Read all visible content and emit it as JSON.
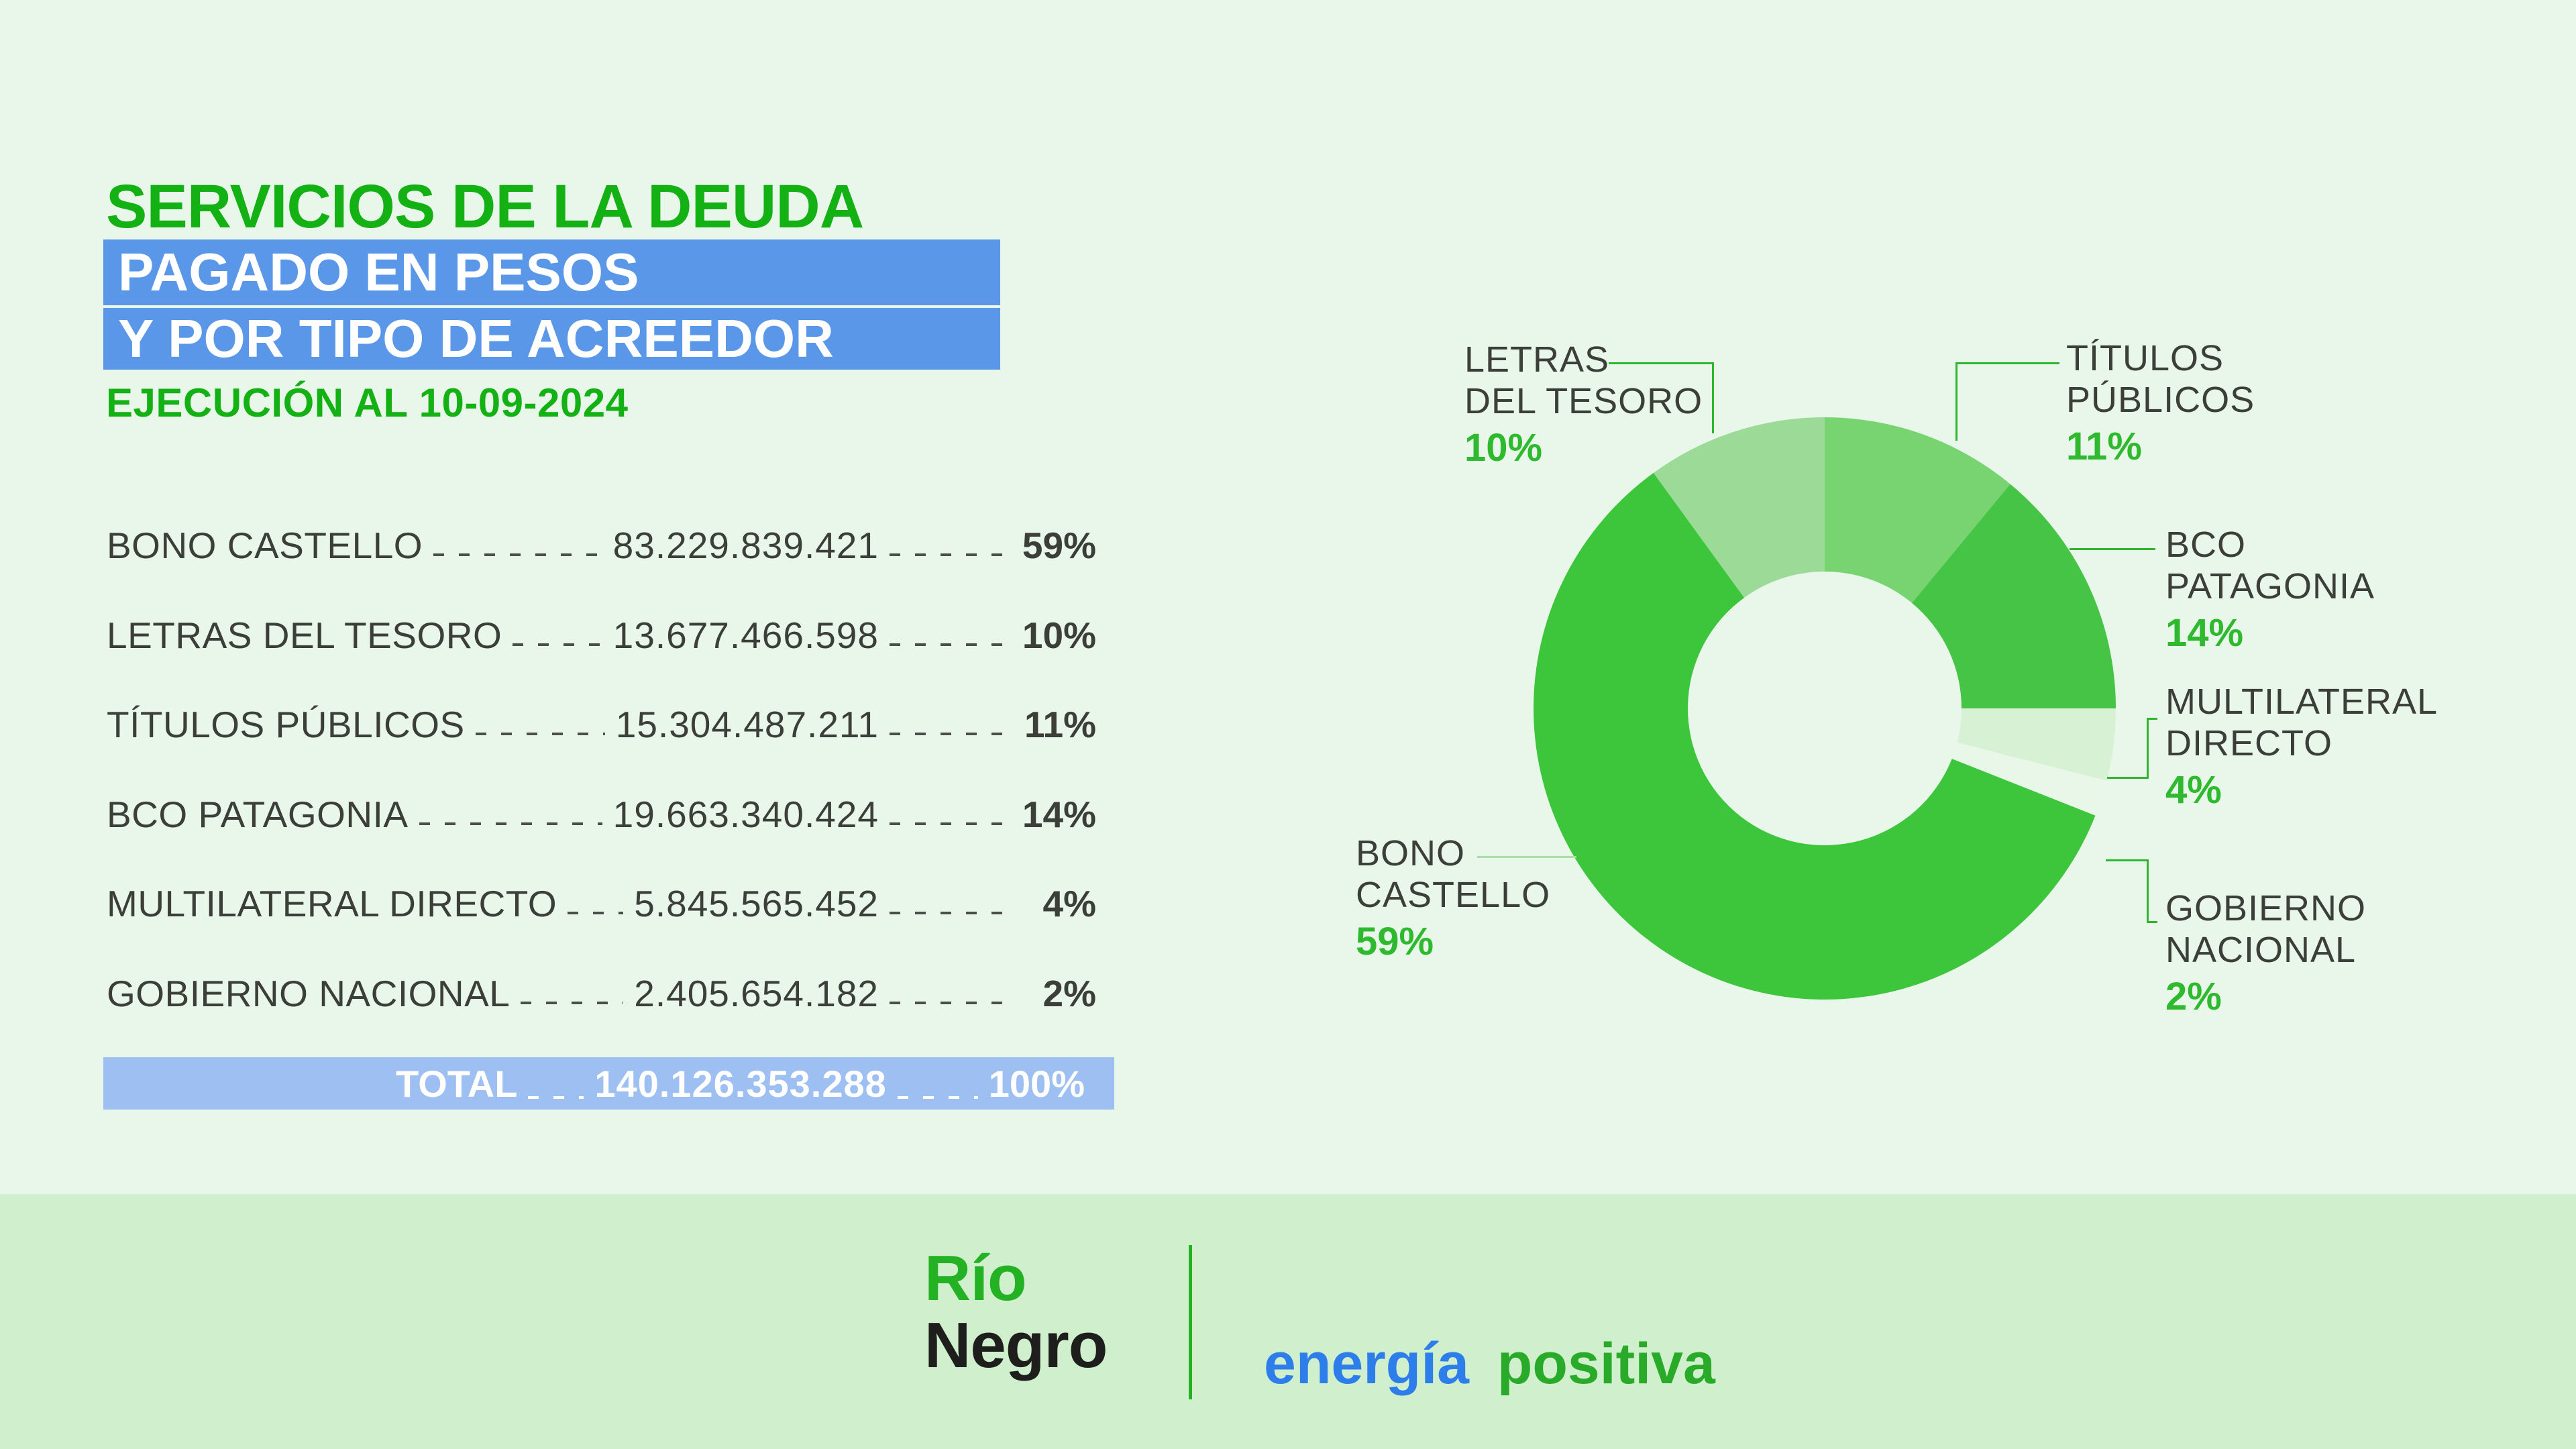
{
  "title": {
    "line1": "SERVICIOS DE LA DEUDA",
    "highlight1": "PAGADO EN PESOS",
    "highlight2": "Y POR TIPO DE ACREEDOR",
    "subtitle": "EJECUCIÓN AL 10-09-2024"
  },
  "table": {
    "rows": [
      {
        "label": "BONO CASTELLO",
        "amount": "83.229.839.421",
        "pct": "59%"
      },
      {
        "label": "LETRAS DEL TESORO",
        "amount": "13.677.466.598",
        "pct": "10%"
      },
      {
        "label": "TÍTULOS PÚBLICOS",
        "amount": "15.304.487.211",
        "pct": "11%"
      },
      {
        "label": "BCO PATAGONIA",
        "amount": "19.663.340.424",
        "pct": "14%"
      },
      {
        "label": "MULTILATERAL DIRECTO",
        "amount": "5.845.565.452",
        "pct": "4%"
      },
      {
        "label": "GOBIERNO NACIONAL",
        "amount": "2.405.654.182",
        "pct": "2%"
      }
    ],
    "total": {
      "label": "TOTAL",
      "amount": "140.126.353.288",
      "pct": "100%"
    }
  },
  "chart_data": {
    "type": "pie",
    "subtype": "donut",
    "title": "SERVICIOS DE LA DEUDA PAGADO EN PESOS Y POR TIPO DE ACREEDOR",
    "subtitle": "EJECUCIÓN AL 10-09-2024",
    "total_label": "TOTAL",
    "total_amount": "140.126.353.288",
    "inner_radius_ratio": 0.47,
    "start_angle": "top",
    "direction": "clockwise",
    "legend_position": "callouts",
    "slices": [
      {
        "label": "TÍTULOS PÚBLICOS",
        "value": 15304487211,
        "pct": 11,
        "color": "#77d471"
      },
      {
        "label": "BCO PATAGONIA",
        "value": 19663340424,
        "pct": 14,
        "color": "#46c446"
      },
      {
        "label": "MULTILATERAL DIRECTO",
        "value": 5845565452,
        "pct": 4,
        "color": "#d6f1d3"
      },
      {
        "label": "GOBIERNO NACIONAL",
        "value": 2405654182,
        "pct": 2,
        "color": "#e9f7e9"
      },
      {
        "label": "BONO CASTELLO",
        "value": 83229839421,
        "pct": 59,
        "color": "#3dc63b"
      },
      {
        "label": "LETRAS DEL TESORO",
        "value": 13677466598,
        "pct": 10,
        "color": "#9cdb97"
      }
    ]
  },
  "callouts": [
    {
      "line1": "LETRAS",
      "line2": "DEL TESORO",
      "pct": "10%"
    },
    {
      "line1": "TÍTULOS",
      "line2": "PÚBLICOS",
      "pct": "11%"
    },
    {
      "line1": "BCO",
      "line2": "PATAGONIA",
      "pct": "14%"
    },
    {
      "line1": "MULTILATERAL",
      "line2": "DIRECTO",
      "pct": "4%"
    },
    {
      "line1": "GOBIERNO",
      "line2": "NACIONAL",
      "pct": "2%"
    },
    {
      "line1": "BONO",
      "line2": "CASTELLO",
      "pct": "59%"
    }
  ],
  "footer": {
    "logo_line1": "Río",
    "logo_line2": "Negro",
    "tagline_word1": "energía",
    "tagline_word2": "positiva"
  },
  "colors": {
    "background": "#e9f7ea",
    "footer_band": "#cfefcd",
    "title_green": "#14b114",
    "highlight_blue": "#5a97e9",
    "total_bar_blue": "#9dbff2",
    "text_dark": "#3c3f37",
    "pct_green": "#2eb92e",
    "leader_green": "#2eb62e",
    "logo_green": "#24b224",
    "tagline_blue": "#2d7eeb",
    "tagline_green": "#29aa29"
  }
}
